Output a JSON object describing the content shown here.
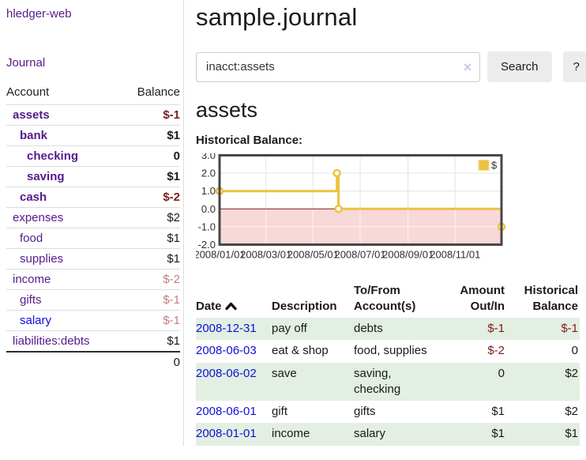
{
  "colors": {
    "purple": "#551a8b",
    "link_blue": "#0f0fdc",
    "neg_strong": "#7f1c1c",
    "neg_soft": "#c47e7e",
    "row_stripe": "#e2efe2",
    "divider": "#dddddd",
    "button_bg": "#ececec",
    "input_border": "#cccccc",
    "clear_icon": "#cfc5de"
  },
  "app": {
    "title": "hledger-web",
    "nav": "Journal"
  },
  "sidebar": {
    "col_account": "Account",
    "col_balance": "Balance",
    "accounts": [
      {
        "name": "assets",
        "indent": 0,
        "bold": true,
        "balance": "$-1",
        "neg": "strong"
      },
      {
        "name": "bank",
        "indent": 1,
        "bold": true,
        "balance": "$1",
        "neg": "none"
      },
      {
        "name": "checking",
        "indent": 2,
        "bold": true,
        "balance": "0",
        "neg": "none"
      },
      {
        "name": "saving",
        "indent": 2,
        "bold": true,
        "balance": "$1",
        "neg": "none"
      },
      {
        "name": "cash",
        "indent": 1,
        "bold": true,
        "balance": "$-2",
        "neg": "strong"
      },
      {
        "name": "expenses",
        "indent": 0,
        "bold": false,
        "balance": "$2",
        "neg": "none"
      },
      {
        "name": "food",
        "indent": 1,
        "bold": false,
        "balance": "$1",
        "neg": "none"
      },
      {
        "name": "supplies",
        "indent": 1,
        "bold": false,
        "balance": "$1",
        "neg": "none"
      },
      {
        "name": "income",
        "indent": 0,
        "bold": false,
        "balance": "$-2",
        "neg": "soft"
      },
      {
        "name": "gifts",
        "indent": 1,
        "bold": false,
        "balance": "$-1",
        "neg": "soft"
      },
      {
        "name": "salary",
        "indent": 1,
        "bold": false,
        "balance": "$-1",
        "neg": "soft",
        "unvisited": true
      },
      {
        "name": "liabilities:debts",
        "indent": 0,
        "bold": false,
        "balance": "$1",
        "neg": "none"
      }
    ],
    "total": "0"
  },
  "main": {
    "title": "sample.journal",
    "search": {
      "value": "inacct:assets",
      "clear_icon": "✕",
      "button_label": "Search",
      "help_label": "?"
    },
    "register": {
      "heading": "assets",
      "chart_title": "Historical Balance:"
    }
  },
  "chart_data": {
    "type": "line",
    "step": true,
    "title": "Historical Balance",
    "series": [
      {
        "name": "$",
        "points": [
          [
            "2008/01/01",
            1
          ],
          [
            "2008/06/01",
            2
          ],
          [
            "2008/06/03",
            0
          ],
          [
            "2008/12/31",
            -1
          ]
        ]
      }
    ],
    "ylim": [
      -2,
      3
    ],
    "yticks": [
      3,
      2,
      1,
      0,
      -1,
      -2
    ],
    "xticks": [
      "2008/01/01",
      "2008/03/01",
      "2008/05/01",
      "2008/07/01",
      "2008/09/01",
      "2008/11/01"
    ],
    "x_range": [
      "2008/01/01",
      "2008/12/31"
    ],
    "grid": true,
    "legend": {
      "position": "top-right",
      "label": "$"
    },
    "colors": {
      "line": "#edc240",
      "negative_region": "#f8d8d8",
      "zero_line": "#8b1a1a",
      "plot_border": "#474747",
      "gridline": "#e4e4e4"
    }
  },
  "register_table": {
    "headers": [
      {
        "key": "date",
        "lines": [
          "Date"
        ],
        "sort": "asc",
        "sortable": true
      },
      {
        "key": "description",
        "lines": [
          "Description"
        ]
      },
      {
        "key": "accounts",
        "lines": [
          "To/From",
          "Account(s)"
        ]
      },
      {
        "key": "amount",
        "lines": [
          "Amount",
          "Out/In"
        ],
        "align": "right"
      },
      {
        "key": "balance",
        "lines": [
          "Historical",
          "Balance"
        ],
        "align": "right"
      }
    ],
    "rows": [
      {
        "date": "2008-12-31",
        "description": "pay off",
        "accounts": "debts",
        "amount": "$-1",
        "amount_negative": true,
        "balance": "$-1",
        "balance_negative": true
      },
      {
        "date": "2008-06-03",
        "description": "eat & shop",
        "accounts": "food, supplies",
        "amount": "$-2",
        "amount_negative": true,
        "balance": "0",
        "balance_negative": false
      },
      {
        "date": "2008-06-02",
        "description": "save",
        "accounts": "saving, checking",
        "amount": "0",
        "amount_negative": false,
        "balance": "$2",
        "balance_negative": false
      },
      {
        "date": "2008-06-01",
        "description": "gift",
        "accounts": "gifts",
        "amount": "$1",
        "amount_negative": false,
        "balance": "$2",
        "balance_negative": false
      },
      {
        "date": "2008-01-01",
        "description": "income",
        "accounts": "salary",
        "amount": "$1",
        "amount_negative": false,
        "balance": "$1",
        "balance_negative": false
      }
    ]
  }
}
